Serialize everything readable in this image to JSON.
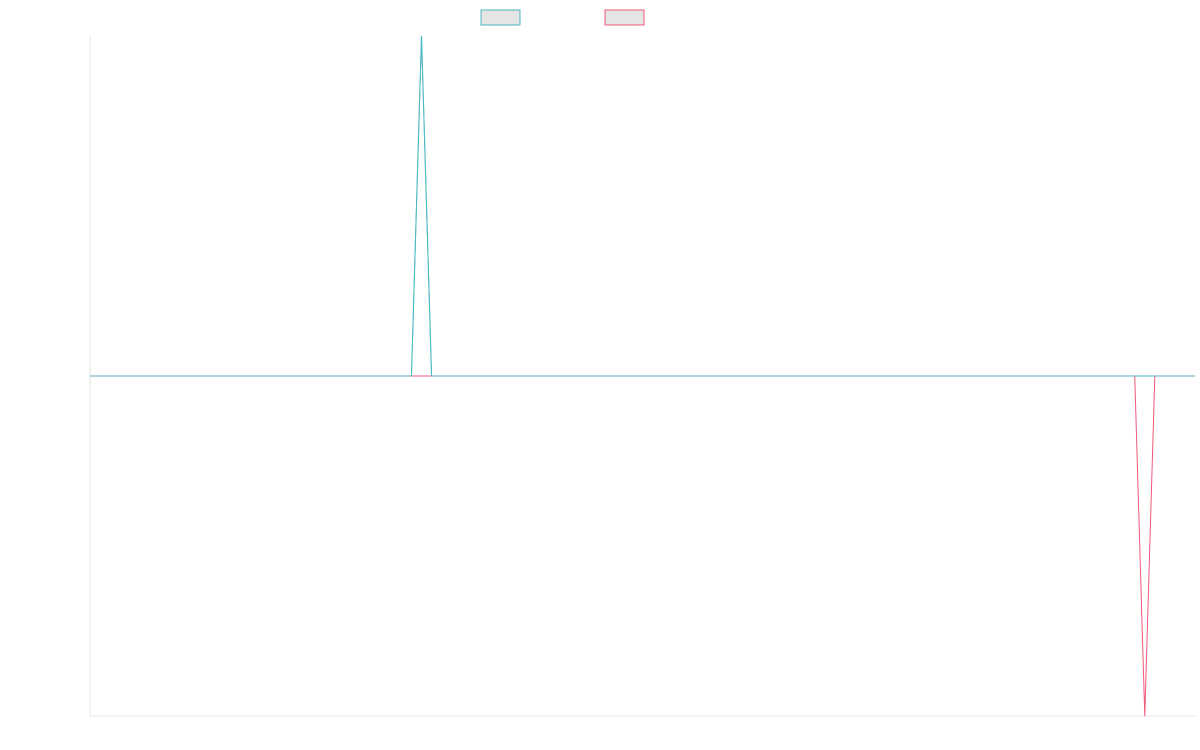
{
  "chart_data": {
    "type": "line",
    "title": "",
    "xlabel": "",
    "ylabel": "",
    "grid": false,
    "legend": {
      "placement": "top-center",
      "entries": [
        {
          "color": "#4bb8c0",
          "fill": "#e5e5e5"
        },
        {
          "color": "#f0587a",
          "fill": "#e5e5e5"
        }
      ]
    },
    "x": [
      0,
      1,
      2,
      3,
      4,
      5,
      6,
      7,
      8,
      9,
      10,
      11,
      12,
      13,
      14,
      15,
      16,
      17,
      18,
      19,
      20,
      21,
      22,
      23,
      24,
      25,
      26,
      27,
      28,
      29,
      30,
      31,
      32,
      33,
      34,
      35,
      36,
      37,
      38,
      39,
      40,
      41,
      42,
      43,
      44,
      45,
      46,
      47,
      48,
      49,
      50,
      51,
      52,
      53,
      54,
      55,
      56,
      57,
      58,
      59,
      60,
      61,
      62,
      63,
      64,
      65,
      66,
      67,
      68,
      69,
      70,
      71,
      72,
      73,
      74,
      75,
      76,
      77,
      78,
      79,
      80,
      81,
      82,
      83,
      84,
      85,
      86,
      87,
      88,
      89,
      90,
      91,
      92,
      93,
      94,
      95,
      96,
      97,
      98,
      99,
      100,
      101,
      102,
      103,
      104,
      105,
      106,
      107,
      108,
      109,
      110
    ],
    "xlim": [
      0,
      110
    ],
    "ylim": [
      -1,
      1
    ],
    "series": [
      {
        "color": "#4bb8c0",
        "values": [
          0,
          0,
          0,
          0,
          0,
          0,
          0,
          0,
          0,
          0,
          0,
          0,
          0,
          0,
          0,
          0,
          0,
          0,
          0,
          0,
          0,
          0,
          0,
          0,
          0,
          0,
          0,
          0,
          0,
          0,
          0,
          0,
          0,
          1,
          0,
          0,
          0,
          0,
          0,
          0,
          0,
          0,
          0,
          0,
          0,
          0,
          0,
          0,
          0,
          0,
          0,
          0,
          0,
          0,
          0,
          0,
          0,
          0,
          0,
          0,
          0,
          0,
          0,
          0,
          0,
          0,
          0,
          0,
          0,
          0,
          0,
          0,
          0,
          0,
          0,
          0,
          0,
          0,
          0,
          0,
          0,
          0,
          0,
          0,
          0,
          0,
          0,
          0,
          0,
          0,
          0,
          0,
          0,
          0,
          0,
          0,
          0,
          0,
          0,
          0,
          0,
          0,
          0,
          0,
          0,
          0,
          0,
          0,
          0,
          0,
          0
        ]
      },
      {
        "color": "#f0587a",
        "values": [
          0,
          0,
          0,
          0,
          0,
          0,
          0,
          0,
          0,
          0,
          0,
          0,
          0,
          0,
          0,
          0,
          0,
          0,
          0,
          0,
          0,
          0,
          0,
          0,
          0,
          0,
          0,
          0,
          0,
          0,
          0,
          0,
          0,
          0,
          0,
          0,
          0,
          0,
          0,
          0,
          0,
          0,
          0,
          0,
          0,
          0,
          0,
          0,
          0,
          0,
          0,
          0,
          0,
          0,
          0,
          0,
          0,
          0,
          0,
          0,
          0,
          0,
          0,
          0,
          0,
          0,
          0,
          0,
          0,
          0,
          0,
          0,
          0,
          0,
          0,
          0,
          0,
          0,
          0,
          0,
          0,
          0,
          0,
          0,
          0,
          0,
          0,
          0,
          0,
          0,
          0,
          0,
          0,
          0,
          0,
          0,
          0,
          0,
          0,
          0,
          0,
          0,
          0,
          0,
          0,
          -1,
          0,
          0,
          0,
          0,
          0
        ]
      }
    ]
  }
}
